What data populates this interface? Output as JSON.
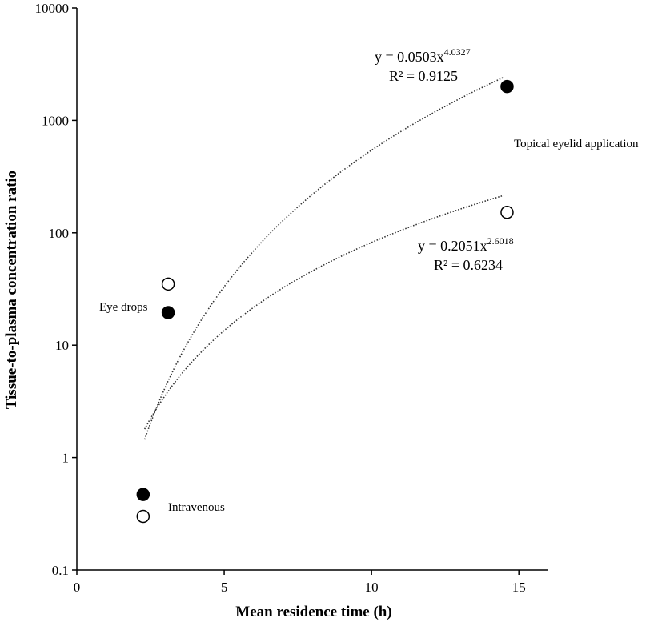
{
  "chart_data": {
    "type": "scatter",
    "xlabel": "Mean residence time (h)",
    "ylabel": "Tissue-to-plasma concentration ratio",
    "xlim": [
      0,
      16
    ],
    "ylim": [
      0.1,
      10000
    ],
    "yscale": "log",
    "x_ticks": [
      "0",
      "5",
      "10",
      "15"
    ],
    "y_ticks": [
      "0.1",
      "1",
      "10",
      "100",
      "1000",
      "10000"
    ],
    "grid": false,
    "series": [
      {
        "marker": "filled-circle",
        "color": "#000000",
        "points": [
          {
            "x": 2.25,
            "y": 0.47
          },
          {
            "x": 3.1,
            "y": 19.5
          },
          {
            "x": 14.6,
            "y": 2000
          }
        ],
        "trendline": {
          "a": 0.0503,
          "b": 4.0327,
          "x_from": 2.3,
          "x_to": 14.5
        },
        "equation": {
          "base": "y = 0.0503x",
          "exponent": "4.0327",
          "r2": "R² = 0.9125"
        }
      },
      {
        "marker": "open-circle",
        "color": "#000000",
        "points": [
          {
            "x": 2.25,
            "y": 0.3
          },
          {
            "x": 3.1,
            "y": 35
          },
          {
            "x": 14.6,
            "y": 152
          }
        ],
        "trendline": {
          "a": 0.2051,
          "b": 2.6018,
          "x_from": 2.3,
          "x_to": 14.5
        },
        "equation": {
          "base": "y = 0.2051x",
          "exponent": "2.6018",
          "r2": "R² = 0.6234"
        }
      }
    ],
    "annotations": [
      "Eye drops",
      "Intravenous",
      "Topical eyelid application"
    ]
  }
}
